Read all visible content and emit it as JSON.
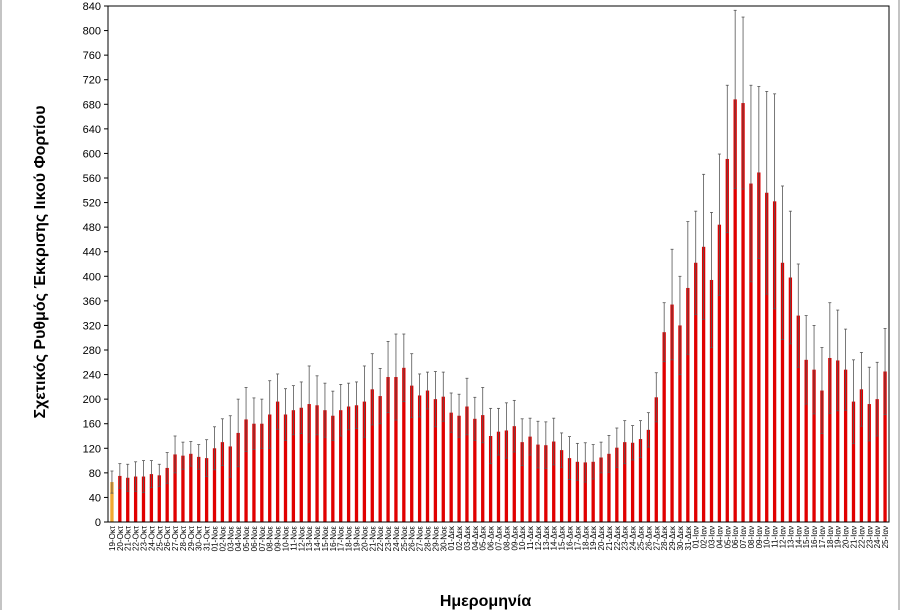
{
  "chart_data": {
    "type": "bar",
    "title": "",
    "xlabel": "Ημερομηνία",
    "ylabel": "Σχετικός Ρυθμός Έκκρισης Ιικού Φορτίου",
    "ylim": [
      0,
      840
    ],
    "yticks": [
      0,
      40,
      80,
      120,
      160,
      200,
      240,
      280,
      320,
      360,
      400,
      440,
      480,
      520,
      560,
      600,
      640,
      680,
      720,
      760,
      800,
      840
    ],
    "grid": false,
    "legend": "none",
    "colors": {
      "bar": "#e00000",
      "highlight": "#f0a830",
      "error": "#555555",
      "frame": "#000000"
    },
    "highlight_index": 0,
    "categories": [
      "19-Οκτ",
      "20-Οκτ",
      "21-Οκτ",
      "22-Οκτ",
      "23-Οκτ",
      "24-Οκτ",
      "25-Οκτ",
      "26-Οκτ",
      "27-Οκτ",
      "28-Οκτ",
      "29-Οκτ",
      "30-Οκτ",
      "31-Οκτ",
      "01-Νοε",
      "02-Νοε",
      "03-Νοε",
      "04-Νοε",
      "05-Νοε",
      "06-Νοε",
      "07-Νοε",
      "08-Νοε",
      "09-Νοε",
      "10-Νοε",
      "11-Νοε",
      "12-Νοε",
      "13-Νοε",
      "14-Νοε",
      "15-Νοε",
      "16-Νοε",
      "17-Νοε",
      "18-Νοε",
      "19-Νοε",
      "20-Νοε",
      "21-Νοε",
      "22-Νοε",
      "23-Νοε",
      "24-Νοε",
      "25-Νοε",
      "26-Νοε",
      "27-Νοε",
      "28-Νοε",
      "29-Νοε",
      "30-Νοε",
      "01-Δεκ",
      "02-Δεκ",
      "03-Δεκ",
      "04-Δεκ",
      "05-Δεκ",
      "06-Δεκ",
      "07-Δεκ",
      "08-Δεκ",
      "09-Δεκ",
      "10-Δεκ",
      "11-Δεκ",
      "12-Δεκ",
      "13-Δεκ",
      "14-Δεκ",
      "15-Δεκ",
      "16-Δεκ",
      "17-Δεκ",
      "18-Δεκ",
      "19-Δεκ",
      "20-Δεκ",
      "21-Δεκ",
      "22-Δεκ",
      "23-Δεκ",
      "24-Δεκ",
      "25-Δεκ",
      "26-Δεκ",
      "27-Δεκ",
      "28-Δεκ",
      "29-Δεκ",
      "30-Δεκ",
      "31-Δεκ",
      "01-Ιαν",
      "02-Ιαν",
      "03-Ιαν",
      "04-Ιαν",
      "05-Ιαν",
      "06-Ιαν",
      "07-Ιαν",
      "08-Ιαν",
      "09-Ιαν",
      "10-Ιαν",
      "11-Ιαν",
      "12-Ιαν",
      "13-Ιαν",
      "14-Ιαν",
      "15-Ιαν",
      "16-Ιαν",
      "17-Ιαν",
      "18-Ιαν",
      "19-Ιαν",
      "20-Ιαν",
      "21-Ιαν",
      "22-Ιαν",
      "23-Ιαν",
      "24-Ιαν",
      "25-Ιαν"
    ],
    "values": [
      65,
      75,
      72,
      74,
      74,
      78,
      76,
      88,
      110,
      108,
      111,
      106,
      104,
      120,
      130,
      123,
      145,
      167,
      160,
      160,
      175,
      196,
      175,
      182,
      186,
      192,
      190,
      182,
      173,
      182,
      188,
      190,
      196,
      216,
      205,
      236,
      236,
      251,
      222,
      206,
      214,
      200,
      204,
      178,
      173,
      188,
      168,
      174,
      140,
      147,
      149,
      156,
      130,
      139,
      126,
      125,
      131,
      117,
      104,
      98,
      97,
      98,
      105,
      111,
      121,
      130,
      129,
      135,
      150,
      203,
      309,
      354,
      320,
      381,
      422,
      448,
      394,
      484,
      591,
      688,
      682,
      551,
      569,
      536,
      522,
      422,
      398,
      336,
      264,
      248,
      214,
      267,
      263,
      248,
      196,
      216,
      192,
      200,
      245
    ],
    "errors": [
      18,
      20,
      22,
      24,
      26,
      22,
      18,
      25,
      30,
      22,
      20,
      20,
      30,
      35,
      38,
      50,
      55,
      52,
      42,
      40,
      55,
      45,
      42,
      40,
      42,
      62,
      48,
      44,
      40,
      42,
      38,
      38,
      58,
      58,
      45,
      58,
      70,
      55,
      52,
      35,
      30,
      45,
      40,
      32,
      35,
      46,
      35,
      45,
      45,
      38,
      45,
      42,
      38,
      30,
      38,
      38,
      38,
      28,
      35,
      30,
      32,
      28,
      25,
      30,
      32,
      35,
      28,
      30,
      28,
      40,
      48,
      90,
      80,
      108,
      84,
      118,
      110,
      115,
      120,
      145,
      140,
      160,
      140,
      165,
      175,
      125,
      108,
      84,
      72,
      72,
      70,
      90,
      82,
      66,
      68,
      60,
      60,
      60,
      70
    ]
  }
}
